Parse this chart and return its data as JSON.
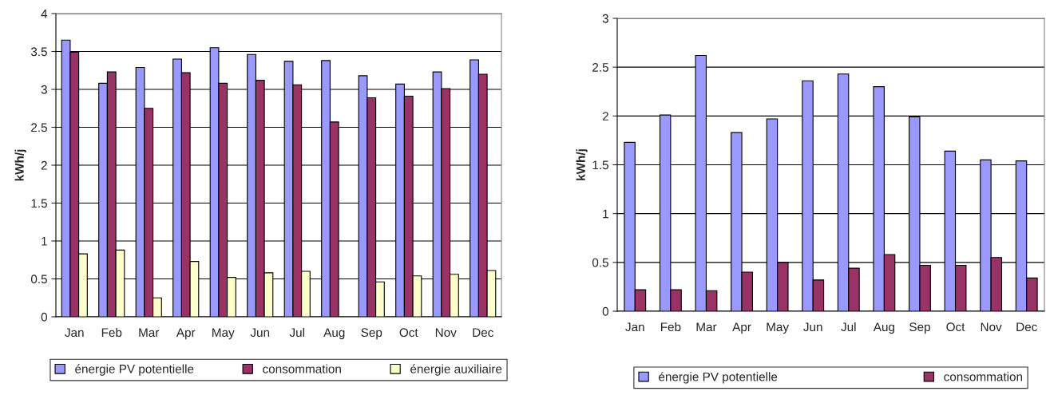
{
  "chart_data": [
    {
      "type": "bar",
      "ylabel": "kWh/j",
      "categories": [
        "Jan",
        "Feb",
        "Mar",
        "Apr",
        "May",
        "Jun",
        "Jul",
        "Aug",
        "Sep",
        "Oct",
        "Nov",
        "Dec"
      ],
      "ylim": [
        0,
        4
      ],
      "yticks": [
        0,
        0.5,
        1,
        1.5,
        2,
        2.5,
        3,
        3.5,
        4
      ],
      "grid": "y",
      "legend": "bottom",
      "series": [
        {
          "name": "énergie PV potentielle",
          "color": "#9999ff",
          "values": [
            3.65,
            3.08,
            3.29,
            3.4,
            3.55,
            3.46,
            3.37,
            3.38,
            3.18,
            3.07,
            3.23,
            3.39
          ]
        },
        {
          "name": "consommation",
          "color": "#993366",
          "values": [
            3.49,
            3.23,
            2.75,
            3.22,
            3.08,
            3.12,
            3.06,
            2.57,
            2.89,
            2.91,
            3.01,
            3.2
          ]
        },
        {
          "name": "énergie auxiliaire",
          "color": "#ffffcc",
          "values": [
            0.83,
            0.88,
            0.25,
            0.73,
            0.52,
            0.58,
            0.6,
            null,
            0.46,
            0.54,
            0.56,
            0.61
          ]
        }
      ]
    },
    {
      "type": "bar",
      "ylabel": "kWh/j",
      "categories": [
        "Jan",
        "Feb",
        "Mar",
        "Apr",
        "May",
        "Jun",
        "Jul",
        "Aug",
        "Sep",
        "Oct",
        "Nov",
        "Dec"
      ],
      "ylim": [
        0,
        3
      ],
      "yticks": [
        0,
        0.5,
        1,
        1.5,
        2,
        2.5,
        3
      ],
      "grid": "y",
      "legend": "bottom",
      "series": [
        {
          "name": "énergie PV potentielle",
          "color": "#9999ff",
          "values": [
            1.73,
            2.01,
            2.62,
            1.83,
            1.97,
            2.36,
            2.43,
            2.3,
            1.99,
            1.64,
            1.55,
            1.54
          ]
        },
        {
          "name": "consommation",
          "color": "#993366",
          "values": [
            0.22,
            0.22,
            0.21,
            0.4,
            0.5,
            0.32,
            0.44,
            0.58,
            0.47,
            0.47,
            0.55,
            0.34
          ]
        }
      ]
    }
  ]
}
